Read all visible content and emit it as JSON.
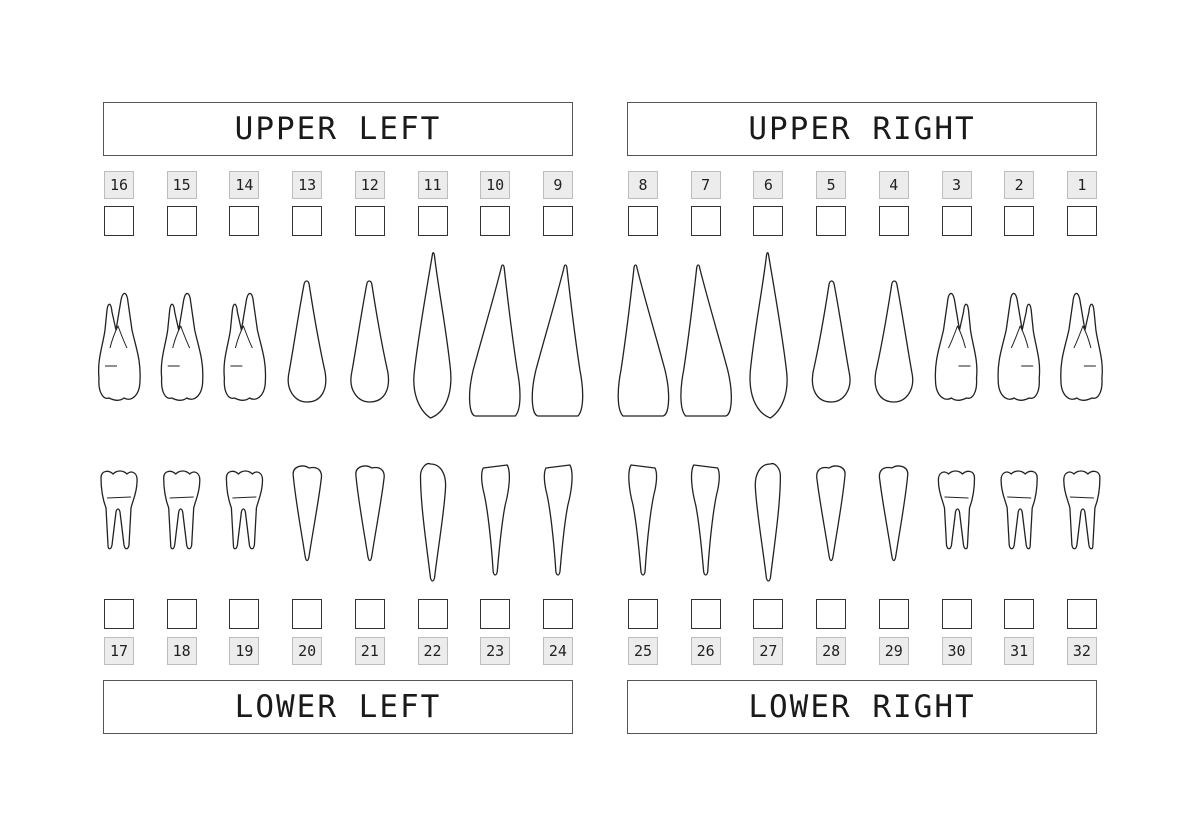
{
  "quadrants": {
    "upper_left": "UPPER LEFT",
    "upper_right": "UPPER RIGHT",
    "lower_left": "LOWER LEFT",
    "lower_right": "LOWER RIGHT"
  },
  "upper_row": [
    "16",
    "15",
    "14",
    "13",
    "12",
    "11",
    "10",
    "9",
    "8",
    "7",
    "6",
    "5",
    "4",
    "3",
    "2",
    "1"
  ],
  "lower_row": [
    "17",
    "18",
    "19",
    "20",
    "21",
    "22",
    "23",
    "24",
    "25",
    "26",
    "27",
    "28",
    "29",
    "30",
    "31",
    "32"
  ],
  "upper_teeth": [
    {
      "number": 16,
      "type": "molar"
    },
    {
      "number": 15,
      "type": "molar"
    },
    {
      "number": 14,
      "type": "molar"
    },
    {
      "number": 13,
      "type": "premolar"
    },
    {
      "number": 12,
      "type": "premolar"
    },
    {
      "number": 11,
      "type": "canine"
    },
    {
      "number": 10,
      "type": "incisor"
    },
    {
      "number": 9,
      "type": "incisor"
    },
    {
      "number": 8,
      "type": "incisor"
    },
    {
      "number": 7,
      "type": "incisor"
    },
    {
      "number": 6,
      "type": "canine"
    },
    {
      "number": 5,
      "type": "premolar"
    },
    {
      "number": 4,
      "type": "premolar"
    },
    {
      "number": 3,
      "type": "molar"
    },
    {
      "number": 2,
      "type": "molar"
    },
    {
      "number": 1,
      "type": "molar"
    }
  ],
  "lower_teeth": [
    {
      "number": 17,
      "type": "molar"
    },
    {
      "number": 18,
      "type": "molar"
    },
    {
      "number": 19,
      "type": "molar"
    },
    {
      "number": 20,
      "type": "premolar"
    },
    {
      "number": 21,
      "type": "premolar"
    },
    {
      "number": 22,
      "type": "canine"
    },
    {
      "number": 23,
      "type": "incisor"
    },
    {
      "number": 24,
      "type": "incisor"
    },
    {
      "number": 25,
      "type": "incisor"
    },
    {
      "number": 26,
      "type": "incisor"
    },
    {
      "number": 27,
      "type": "canine"
    },
    {
      "number": 28,
      "type": "premolar"
    },
    {
      "number": 29,
      "type": "premolar"
    },
    {
      "number": 30,
      "type": "molar"
    },
    {
      "number": 31,
      "type": "molar"
    },
    {
      "number": 32,
      "type": "molar"
    }
  ]
}
